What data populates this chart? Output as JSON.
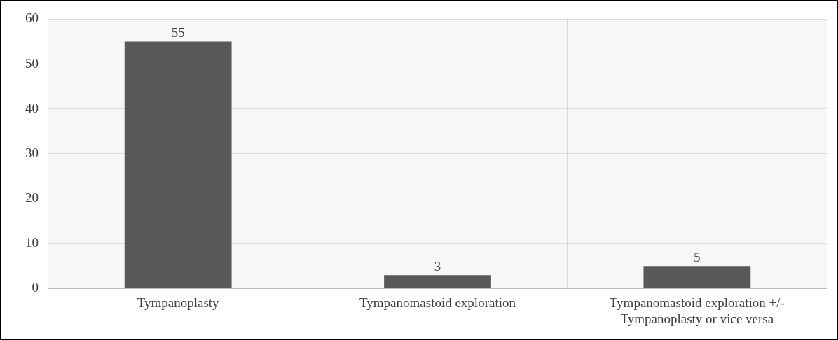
{
  "chart_data": {
    "type": "bar",
    "categories": [
      "Tympanoplasty",
      "Tympanomastoid exploration",
      "Tympanomastoid exploration +/-\nTympanoplasty or vice versa"
    ],
    "values": [
      55,
      3,
      5
    ],
    "color": "#595959",
    "ylim": [
      0,
      60
    ],
    "yticks": [
      0,
      10,
      20,
      30,
      40,
      50,
      60
    ],
    "grid": true,
    "data_labels": true
  }
}
